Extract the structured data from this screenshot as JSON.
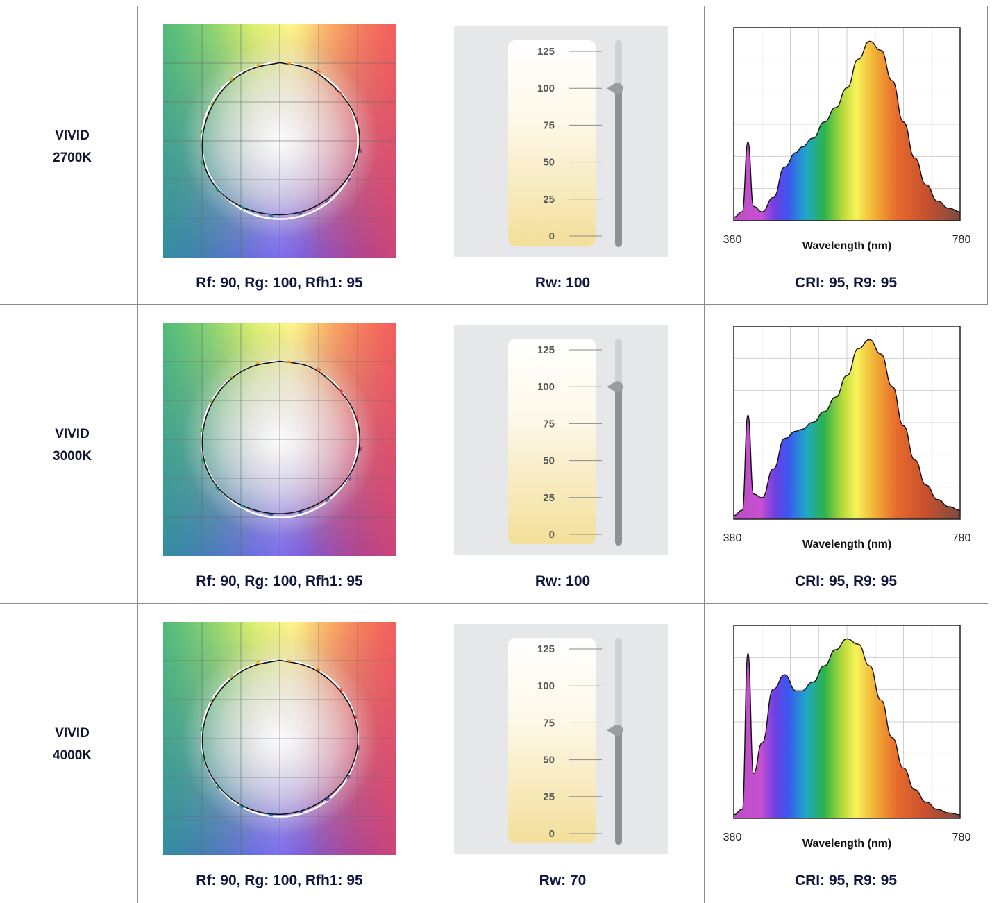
{
  "rows": [
    {
      "name_line1": "VIVID",
      "name_line2": "2700K",
      "tm30_caption": "Rf: 90, Rg: 100, Rfh1: 95",
      "rw_caption": "Rw: 100",
      "rw_value": 100,
      "spectrum_caption": "CRI: 95, R9: 95"
    },
    {
      "name_line1": "VIVID",
      "name_line2": "3000K",
      "tm30_caption": "Rf: 90, Rg: 100, Rfh1: 95",
      "rw_caption": "Rw: 100",
      "rw_value": 100,
      "spectrum_caption": "CRI: 95, R9: 95"
    },
    {
      "name_line1": "VIVID",
      "name_line2": "4000K",
      "tm30_caption": "Rf: 90, Rg: 100, Rfh1: 95",
      "rw_caption": "Rw: 70",
      "rw_value": 70,
      "spectrum_caption": "CRI: 95, R9: 95"
    }
  ],
  "rw_scale": {
    "ticks": [
      "125",
      "100",
      "75",
      "50",
      "25",
      "0"
    ],
    "max": 125,
    "min": 0
  },
  "spectrum_axis": {
    "x_min_label": "380",
    "x_max_label": "780",
    "xlabel": "Wavelength (nm)"
  },
  "chart_data": [
    {
      "type": "area",
      "title": "",
      "xlabel": "Wavelength (nm)",
      "xlim": [
        380,
        780
      ],
      "series": [
        {
          "x": [
            380,
            395,
            405,
            415,
            430,
            450,
            470,
            490,
            500,
            520,
            540,
            560,
            580,
            600,
            620,
            640,
            660,
            680,
            700,
            720,
            740,
            760,
            780
          ],
          "values": [
            0.02,
            0.05,
            0.44,
            0.08,
            0.05,
            0.13,
            0.3,
            0.38,
            0.41,
            0.46,
            0.55,
            0.63,
            0.74,
            0.9,
            1.0,
            0.95,
            0.78,
            0.55,
            0.35,
            0.2,
            0.11,
            0.07,
            0.05
          ]
        }
      ]
    },
    {
      "type": "area",
      "title": "",
      "xlabel": "Wavelength (nm)",
      "xlim": [
        380,
        780
      ],
      "series": [
        {
          "x": [
            380,
            395,
            405,
            415,
            430,
            450,
            470,
            490,
            500,
            520,
            540,
            560,
            580,
            600,
            620,
            640,
            660,
            680,
            700,
            720,
            740,
            760,
            780
          ],
          "values": [
            0.02,
            0.05,
            0.58,
            0.14,
            0.12,
            0.28,
            0.45,
            0.49,
            0.5,
            0.54,
            0.6,
            0.68,
            0.8,
            0.95,
            1.0,
            0.92,
            0.74,
            0.52,
            0.33,
            0.19,
            0.11,
            0.07,
            0.05
          ]
        }
      ]
    },
    {
      "type": "area",
      "title": "",
      "xlabel": "Wavelength (nm)",
      "xlim": [
        380,
        780
      ],
      "series": [
        {
          "x": [
            380,
            395,
            405,
            415,
            430,
            450,
            470,
            490,
            500,
            520,
            540,
            560,
            580,
            600,
            620,
            640,
            660,
            680,
            700,
            720,
            740,
            760,
            780
          ],
          "values": [
            0.02,
            0.05,
            0.92,
            0.25,
            0.42,
            0.72,
            0.8,
            0.71,
            0.71,
            0.76,
            0.85,
            0.94,
            1.0,
            0.97,
            0.85,
            0.66,
            0.45,
            0.28,
            0.16,
            0.09,
            0.05,
            0.03,
            0.02
          ]
        }
      ]
    }
  ]
}
